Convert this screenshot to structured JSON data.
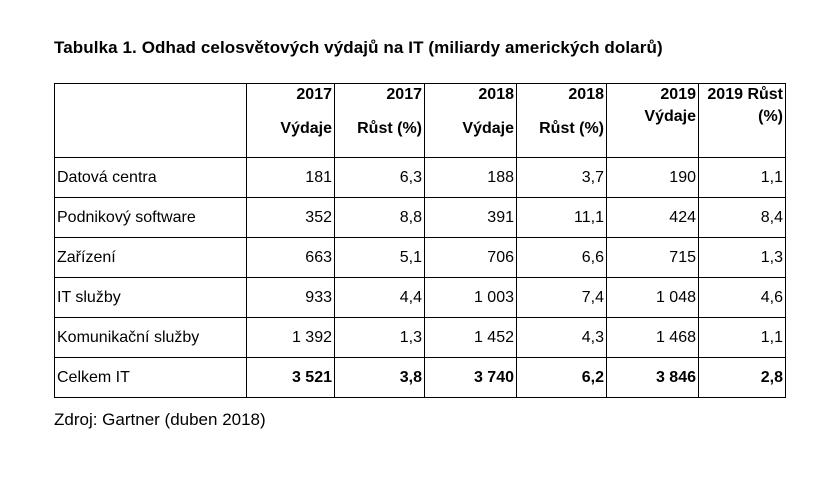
{
  "caption": "Tabulka 1. Odhad celosvětových výdajů na IT (miliardy amerických dolarů)",
  "columns": [
    {
      "line1": "",
      "line2": ""
    },
    {
      "line1": "2017",
      "line2": "Výdaje"
    },
    {
      "line1": "2017",
      "line2": "Růst (%)"
    },
    {
      "line1": "2018",
      "line2": "Výdaje"
    },
    {
      "line1": "2018",
      "line2": "Růst (%)"
    },
    {
      "line1": "2019",
      "line2": "Výdaje"
    },
    {
      "line1": "2019 Růst",
      "line2": "(%)"
    }
  ],
  "rows": [
    {
      "category": "Datová centra",
      "values": [
        "181",
        "6,3",
        "188",
        "3,7",
        "190",
        "1,1"
      ]
    },
    {
      "category": "Podnikový software",
      "values": [
        "352",
        "8,8",
        "391",
        "11,1",
        "424",
        "8,4"
      ]
    },
    {
      "category": "Zařízení",
      "values": [
        "663",
        "5,1",
        "706",
        "6,6",
        "715",
        "1,3"
      ]
    },
    {
      "category": "IT služby",
      "values": [
        "933",
        "4,4",
        "1 003",
        "7,4",
        "1 048",
        "4,6"
      ]
    },
    {
      "category": "Komunikační služby",
      "values": [
        "1 392",
        "1,3",
        "1 452",
        "4,3",
        "1 468",
        "1,1"
      ]
    },
    {
      "category": "Celkem IT",
      "values": [
        "3 521",
        "3,8",
        "3 740",
        "6,2",
        "3 846",
        "2,8"
      ]
    }
  ],
  "source": "Zdroj: Gartner (duben 2018)"
}
